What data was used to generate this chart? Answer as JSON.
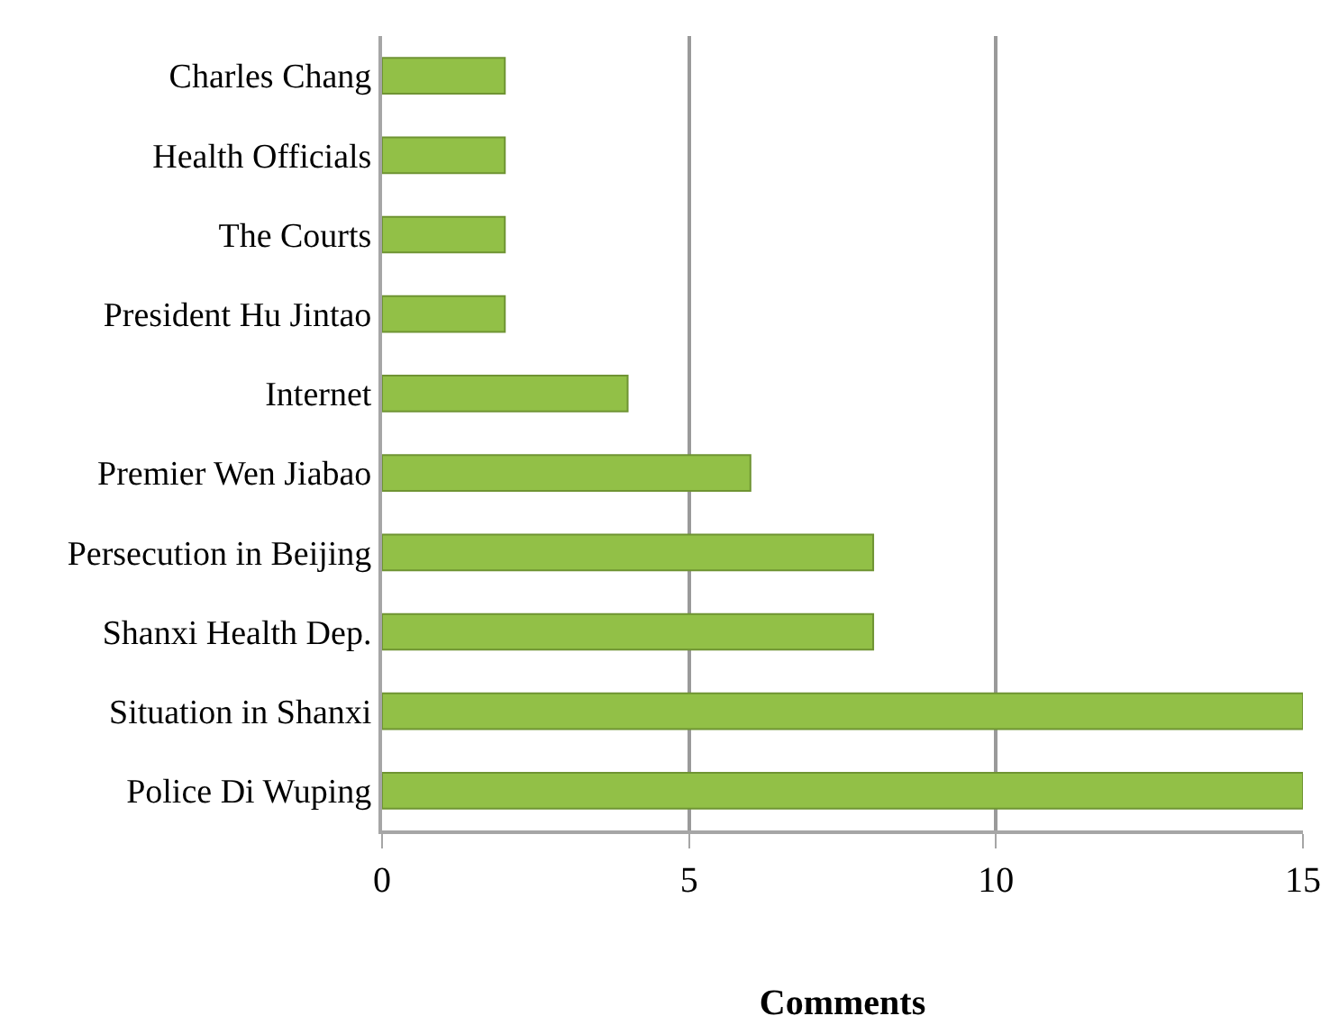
{
  "chart_data": {
    "type": "bar",
    "orientation": "horizontal",
    "xlabel": "Comments",
    "categories": [
      "Charles Chang",
      "Health Officials",
      "The Courts",
      "President Hu Jintao",
      "Internet",
      "Premier Wen Jiabao",
      "Persecution in Beijing",
      "Shanxi Health Dep.",
      "Situation in Shanxi",
      "Police Di Wuping"
    ],
    "values": [
      2,
      2,
      2,
      2,
      4,
      6,
      8,
      8,
      15,
      15
    ],
    "color": "#92c047",
    "xlim": [
      0,
      15
    ],
    "xticks": [
      0,
      5,
      10,
      15
    ],
    "grid": "x"
  }
}
